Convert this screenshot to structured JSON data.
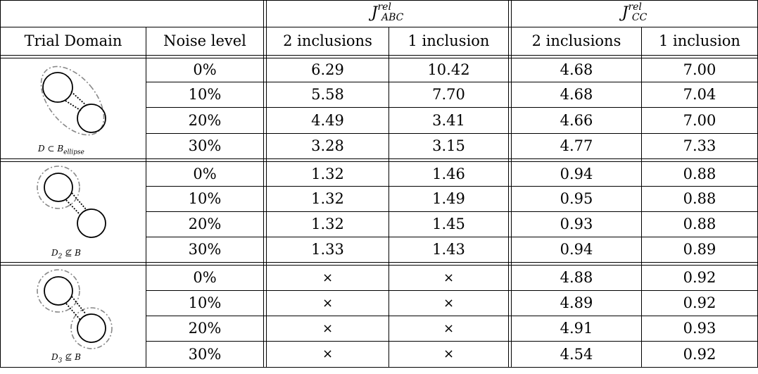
{
  "header": {
    "group_abc": "J",
    "group_abc_sup": "rel",
    "group_abc_sub": "ABC",
    "group_cc": "J",
    "group_cc_sup": "rel",
    "group_cc_sub": "CC",
    "trial_domain": "Trial Domain",
    "noise_level": "Noise level",
    "abc_2": "2 inclusions",
    "abc_1": "1 inclusion",
    "cc_2": "2 inclusions",
    "cc_1": "1 inclusion"
  },
  "groups": [
    {
      "label_main": "D",
      "label_rel": "⊂",
      "label_set": "B",
      "label_sub": "ellipse",
      "rows": [
        {
          "noise": "0%",
          "abc2": "6.29",
          "abc1": "10.42",
          "cc2": "4.68",
          "cc1": "7.00"
        },
        {
          "noise": "10%",
          "abc2": "5.58",
          "abc1": "7.70",
          "cc2": "4.68",
          "cc1": "7.04"
        },
        {
          "noise": "20%",
          "abc2": "4.49",
          "abc1": "3.41",
          "cc2": "4.66",
          "cc1": "7.00"
        },
        {
          "noise": "30%",
          "abc2": "3.28",
          "abc1": "3.15",
          "cc2": "4.77",
          "cc1": "7.33"
        }
      ]
    },
    {
      "label_main": "D",
      "label_main_sub": "2",
      "label_rel": "⊈",
      "label_set": "B",
      "rows": [
        {
          "noise": "0%",
          "abc2": "1.32",
          "abc1": "1.46",
          "cc2": "0.94",
          "cc1": "0.88"
        },
        {
          "noise": "10%",
          "abc2": "1.32",
          "abc1": "1.49",
          "cc2": "0.95",
          "cc1": "0.88"
        },
        {
          "noise": "20%",
          "abc2": "1.32",
          "abc1": "1.45",
          "cc2": "0.93",
          "cc1": "0.88"
        },
        {
          "noise": "30%",
          "abc2": "1.33",
          "abc1": "1.43",
          "cc2": "0.94",
          "cc1": "0.89"
        }
      ]
    },
    {
      "label_main": "D",
      "label_main_sub": "3",
      "label_rel": "⊈",
      "label_set": "B",
      "rows": [
        {
          "noise": "0%",
          "abc2": "×",
          "abc1": "×",
          "cc2": "4.88",
          "cc1": "0.92"
        },
        {
          "noise": "10%",
          "abc2": "×",
          "abc1": "×",
          "cc2": "4.89",
          "cc1": "0.92"
        },
        {
          "noise": "20%",
          "abc2": "×",
          "abc1": "×",
          "cc2": "4.91",
          "cc1": "0.93"
        },
        {
          "noise": "30%",
          "abc2": "×",
          "abc1": "×",
          "cc2": "4.54",
          "cc1": "0.92"
        }
      ]
    }
  ]
}
